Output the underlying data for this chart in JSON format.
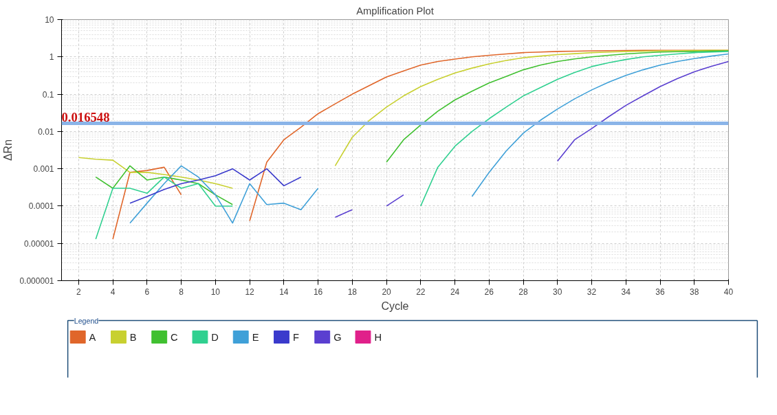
{
  "chart_data": {
    "type": "line",
    "title": "Amplification Plot",
    "xlabel": "Cycle",
    "ylabel": "ΔRn",
    "log": "y",
    "grid": true,
    "legend": "bottom",
    "legend_title": "Legend",
    "x": [
      2,
      3,
      4,
      5,
      6,
      7,
      8,
      9,
      10,
      11,
      12,
      13,
      14,
      15,
      16,
      17,
      18,
      19,
      20,
      21,
      22,
      23,
      24,
      25,
      26,
      27,
      28,
      29,
      30,
      31,
      32,
      33,
      34,
      35,
      36,
      37,
      38,
      39,
      40
    ],
    "xlim": [
      1,
      40
    ],
    "xticks": [
      2,
      4,
      6,
      8,
      10,
      12,
      14,
      16,
      18,
      20,
      22,
      24,
      26,
      28,
      30,
      32,
      34,
      36,
      38,
      40
    ],
    "ylim": [
      1e-06,
      10
    ],
    "yticks": [
      {
        "value": 1e-06,
        "label": "0.000001"
      },
      {
        "value": 1e-05,
        "label": "0.00001"
      },
      {
        "value": 0.0001,
        "label": "0.0001"
      },
      {
        "value": 0.001,
        "label": "0.001"
      },
      {
        "value": 0.01,
        "label": "0.01"
      },
      {
        "value": 0.1,
        "label": "0.1"
      },
      1,
      10
    ],
    "ref_lines": [
      {
        "axis": "y",
        "value": 0.016548,
        "label": "0.016548",
        "color": "#8ab4e8"
      }
    ],
    "series": [
      {
        "name": "A",
        "color": "#e0662a",
        "values": [
          null,
          null,
          1.3e-05,
          0.0008,
          0.0009,
          0.0011,
          0.0002,
          null,
          null,
          null,
          4e-05,
          0.0015,
          0.006,
          0.013,
          0.03,
          0.055,
          0.1,
          0.17,
          0.29,
          0.42,
          0.6,
          0.75,
          0.87,
          1.0,
          1.1,
          1.2,
          1.3,
          1.35,
          1.4,
          1.42,
          1.45,
          1.47,
          1.48,
          1.5,
          1.5,
          1.5,
          1.5,
          1.5,
          1.5
        ]
      },
      {
        "name": "B",
        "color": "#c8d030",
        "values": [
          0.002,
          0.0018,
          0.0017,
          0.0008,
          0.0008,
          0.0007,
          0.0006,
          0.0005,
          0.0004,
          0.0003,
          null,
          null,
          null,
          null,
          null,
          0.0012,
          0.007,
          0.02,
          0.045,
          0.09,
          0.16,
          0.25,
          0.37,
          0.5,
          0.65,
          0.8,
          0.95,
          1.05,
          1.15,
          1.22,
          1.3,
          1.35,
          1.4,
          1.42,
          1.45,
          1.47,
          1.48,
          1.5,
          1.5
        ]
      },
      {
        "name": "C",
        "color": "#40c030",
        "values": [
          null,
          0.0006,
          0.0003,
          0.0012,
          0.0005,
          0.0006,
          0.0005,
          0.0004,
          0.0002,
          0.00011,
          null,
          null,
          null,
          null,
          null,
          null,
          null,
          null,
          0.0015,
          0.006,
          0.015,
          0.035,
          0.07,
          0.12,
          0.2,
          0.3,
          0.45,
          0.6,
          0.75,
          0.88,
          1.0,
          1.1,
          1.2,
          1.28,
          1.35,
          1.38,
          1.4,
          1.43,
          1.45
        ]
      },
      {
        "name": "D",
        "color": "#30d090",
        "values": [
          null,
          1.3e-05,
          0.0003,
          0.0003,
          0.00022,
          0.0006,
          0.0003,
          0.0004,
          0.0001,
          0.0001,
          null,
          null,
          null,
          null,
          null,
          null,
          null,
          null,
          null,
          null,
          0.0001,
          0.0011,
          0.004,
          0.01,
          0.022,
          0.045,
          0.09,
          0.15,
          0.25,
          0.38,
          0.55,
          0.7,
          0.85,
          1.0,
          1.1,
          1.2,
          1.3,
          1.35,
          1.4
        ]
      },
      {
        "name": "E",
        "color": "#3fa0d8",
        "values": [
          null,
          null,
          null,
          3.5e-05,
          0.00012,
          0.0004,
          0.0012,
          0.0006,
          0.0002,
          3.5e-05,
          0.0004,
          0.00011,
          0.00012,
          8e-05,
          0.0003,
          null,
          null,
          null,
          null,
          null,
          null,
          null,
          null,
          0.00018,
          0.0008,
          0.003,
          0.009,
          0.02,
          0.04,
          0.075,
          0.13,
          0.21,
          0.32,
          0.45,
          0.6,
          0.75,
          0.9,
          1.05,
          1.2
        ]
      },
      {
        "name": "F",
        "color": "#3a3acc",
        "values": [
          null,
          null,
          null,
          0.00012,
          0.00018,
          0.00028,
          0.0004,
          0.0005,
          0.00065,
          0.001,
          0.0005,
          0.001,
          0.00035,
          0.0006,
          null,
          null,
          null,
          null,
          null,
          null,
          null,
          null,
          null,
          null,
          null,
          null,
          null,
          null,
          null,
          null,
          null,
          null,
          null,
          null,
          null,
          null,
          null,
          null,
          null
        ]
      },
      {
        "name": "G",
        "color": "#5a3fd0",
        "values": [
          null,
          null,
          null,
          null,
          null,
          null,
          null,
          null,
          null,
          null,
          null,
          null,
          null,
          null,
          null,
          5e-05,
          8e-05,
          null,
          0.0001,
          0.0002,
          null,
          null,
          null,
          null,
          null,
          null,
          null,
          null,
          0.0016,
          0.006,
          0.012,
          0.025,
          0.05,
          0.09,
          0.16,
          0.26,
          0.4,
          0.56,
          0.75
        ]
      },
      {
        "name": "H",
        "color": "#e0208a",
        "values": [
          null,
          null,
          null,
          null,
          null,
          null,
          null,
          null,
          null,
          null,
          null,
          null,
          null,
          null,
          null,
          null,
          null,
          null,
          null,
          null,
          null,
          null,
          null,
          null,
          null,
          null,
          null,
          null,
          null,
          null,
          null,
          null,
          null,
          null,
          null,
          null,
          null,
          null,
          null
        ]
      }
    ]
  }
}
